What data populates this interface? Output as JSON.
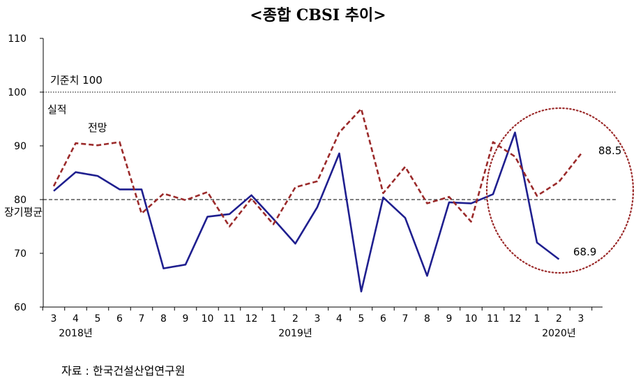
{
  "title": "<종합 CBSI 추이>",
  "source": "자료 : 한국건설산업연구원",
  "chart_data": {
    "type": "line",
    "categories": [
      "3",
      "4",
      "5",
      "6",
      "7",
      "8",
      "9",
      "10",
      "11",
      "12",
      "1",
      "2",
      "3",
      "4",
      "5",
      "6",
      "7",
      "8",
      "9",
      "10",
      "11",
      "12",
      "1",
      "2",
      "3"
    ],
    "year_labels": [
      {
        "label": "2018년",
        "category_index": 1
      },
      {
        "label": "2019년",
        "category_index": 11
      },
      {
        "label": "2020년",
        "category_index": 23
      }
    ],
    "ylim": [
      60,
      110
    ],
    "yticks": [
      60,
      70,
      80,
      90,
      100,
      110
    ],
    "series": [
      {
        "name": "실적",
        "color": "#1f1f8f",
        "style": "solid",
        "values": [
          81.6,
          85.1,
          84.4,
          81.9,
          81.9,
          67.2,
          67.9,
          76.8,
          77.3,
          80.8,
          76.4,
          71.8,
          78.6,
          88.6,
          62.9,
          80.4,
          76.6,
          65.8,
          79.5,
          79.3,
          81.0,
          92.5,
          72.0,
          68.9,
          null
        ]
      },
      {
        "name": "전망",
        "color": "#9b2a2a",
        "style": "dashed",
        "values": [
          82.5,
          90.5,
          90.1,
          90.7,
          77.4,
          81.1,
          79.9,
          81.4,
          75.0,
          80.2,
          75.4,
          82.3,
          83.4,
          92.5,
          96.9,
          81.2,
          86.1,
          79.3,
          80.5,
          75.9,
          90.7,
          88.0,
          80.7,
          83.3,
          88.5
        ]
      }
    ],
    "reference_lines": [
      {
        "label": "기준치 100",
        "value": 100,
        "style": "dotted"
      },
      {
        "label": "장기평균",
        "value": 80,
        "style": "dashed"
      }
    ],
    "value_labels": [
      {
        "text": "68.9",
        "series": 0,
        "category_index": 23
      },
      {
        "text": "88.5",
        "series": 1,
        "category_index": 24
      }
    ],
    "highlight": "dotted circle around the most recent months (11 – 3)",
    "grid": false
  }
}
